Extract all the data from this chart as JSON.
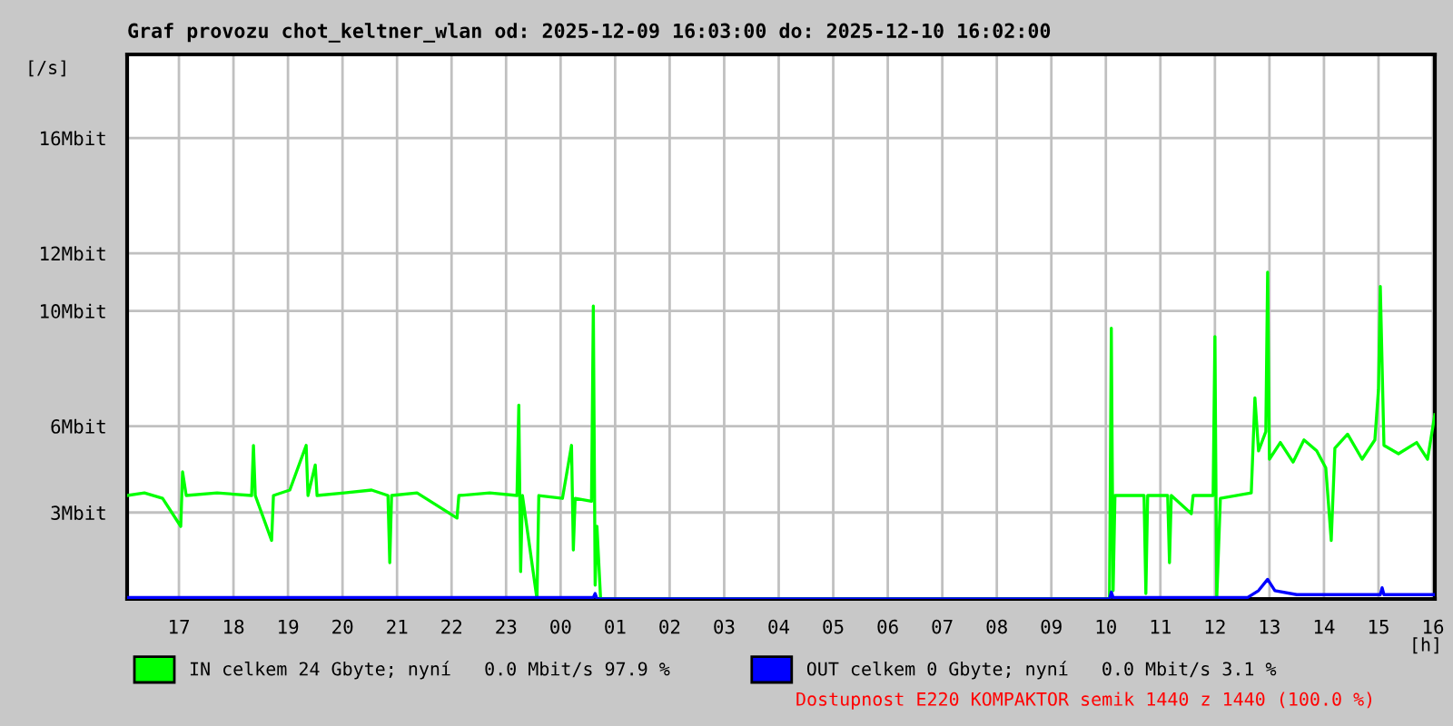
{
  "chart_data": {
    "type": "line",
    "title": "Graf provozu chot_keltner_wlan od: 2025-12-09 16:03:00 do: 2025-12-10 16:02:00",
    "xlabel": "[h]",
    "ylabel": "[/s]",
    "xlim": [
      "2025-12-09T16:03",
      "2025-12-10T16:02"
    ],
    "xticks": [
      {
        "value": "2025-12-09T17:00",
        "label": "17"
      },
      {
        "value": "2025-12-09T18:00",
        "label": "18"
      },
      {
        "value": "2025-12-09T19:00",
        "label": "19"
      },
      {
        "value": "2025-12-09T20:00",
        "label": "20"
      },
      {
        "value": "2025-12-09T21:00",
        "label": "21"
      },
      {
        "value": "2025-12-09T22:00",
        "label": "22"
      },
      {
        "value": "2025-12-09T23:00",
        "label": "23"
      },
      {
        "value": "2025-12-10T00:00",
        "label": "00"
      },
      {
        "value": "2025-12-10T01:00",
        "label": "01"
      },
      {
        "value": "2025-12-10T02:00",
        "label": "02"
      },
      {
        "value": "2025-12-10T03:00",
        "label": "03"
      },
      {
        "value": "2025-12-10T04:00",
        "label": "04"
      },
      {
        "value": "2025-12-10T05:00",
        "label": "05"
      },
      {
        "value": "2025-12-10T06:00",
        "label": "06"
      },
      {
        "value": "2025-12-10T07:00",
        "label": "07"
      },
      {
        "value": "2025-12-10T08:00",
        "label": "08"
      },
      {
        "value": "2025-12-10T09:00",
        "label": "09"
      },
      {
        "value": "2025-12-10T10:00",
        "label": "10"
      },
      {
        "value": "2025-12-10T11:00",
        "label": "11"
      },
      {
        "value": "2025-12-10T12:00",
        "label": "12"
      },
      {
        "value": "2025-12-10T13:00",
        "label": "13"
      },
      {
        "value": "2025-12-10T14:00",
        "label": "14"
      },
      {
        "value": "2025-12-10T15:00",
        "label": "15"
      },
      {
        "value": "2025-12-10T16:00",
        "label": "16"
      }
    ],
    "ylim": [
      0,
      18.9
    ],
    "yticks": [
      {
        "value": 3,
        "label": "3Mbit"
      },
      {
        "value": 6,
        "label": "6Mbit"
      },
      {
        "value": 10,
        "label": "10Mbit"
      },
      {
        "value": 12,
        "label": "12Mbit"
      },
      {
        "value": 16,
        "label": "16Mbit"
      }
    ],
    "grid": true,
    "legend": "bottom",
    "series": [
      {
        "name": "IN celkem 24 Gbyte; nyní   0.0 Mbit/s 97.9 %",
        "color": "#00ff00",
        "x": [
          "2025-12-09T16:03",
          "2025-12-09T16:22",
          "2025-12-09T16:42",
          "2025-12-09T17:02",
          "2025-12-09T17:04",
          "2025-12-09T17:08",
          "2025-12-09T17:42",
          "2025-12-09T18:20",
          "2025-12-09T18:22",
          "2025-12-09T18:24",
          "2025-12-09T18:42",
          "2025-12-09T18:44",
          "2025-12-09T19:02",
          "2025-12-09T19:20",
          "2025-12-09T19:22",
          "2025-12-09T19:30",
          "2025-12-09T19:32",
          "2025-12-09T20:02",
          "2025-12-09T20:32",
          "2025-12-09T20:50",
          "2025-12-09T20:52",
          "2025-12-09T20:54",
          "2025-12-09T21:22",
          "2025-12-09T22:06",
          "2025-12-09T22:08",
          "2025-12-09T22:42",
          "2025-12-09T23:12",
          "2025-12-09T23:14",
          "2025-12-09T23:16",
          "2025-12-09T23:18",
          "2025-12-09T23:34",
          "2025-12-09T23:36",
          "2025-12-10T00:02",
          "2025-12-10T00:12",
          "2025-12-10T00:14",
          "2025-12-10T00:16",
          "2025-12-10T00:34",
          "2025-12-10T00:36",
          "2025-12-10T00:38",
          "2025-12-10T00:40",
          "2025-12-10T00:44",
          "2025-12-10T10:04",
          "2025-12-10T10:06",
          "2025-12-10T10:08",
          "2025-12-10T10:10",
          "2025-12-10T10:42",
          "2025-12-10T10:44",
          "2025-12-10T10:46",
          "2025-12-10T11:08",
          "2025-12-10T11:10",
          "2025-12-10T11:12",
          "2025-12-10T11:34",
          "2025-12-10T11:36",
          "2025-12-10T11:58",
          "2025-12-10T12:00",
          "2025-12-10T12:02",
          "2025-12-10T12:06",
          "2025-12-10T12:40",
          "2025-12-10T12:42",
          "2025-12-10T12:44",
          "2025-12-10T12:48",
          "2025-12-10T12:56",
          "2025-12-10T12:58",
          "2025-12-10T13:00",
          "2025-12-10T13:12",
          "2025-12-10T13:26",
          "2025-12-10T13:38",
          "2025-12-10T13:52",
          "2025-12-10T14:02",
          "2025-12-10T14:08",
          "2025-12-10T14:12",
          "2025-12-10T14:26",
          "2025-12-10T14:42",
          "2025-12-10T14:56",
          "2025-12-10T15:00",
          "2025-12-10T15:02",
          "2025-12-10T15:06",
          "2025-12-10T15:22",
          "2025-12-10T15:42",
          "2025-12-10T15:54",
          "2025-12-10T16:02"
        ],
        "values": [
          3.59,
          3.68,
          3.49,
          2.52,
          4.41,
          3.59,
          3.68,
          3.59,
          5.33,
          3.59,
          2.03,
          3.59,
          3.78,
          5.33,
          3.59,
          4.65,
          3.59,
          3.68,
          3.78,
          3.59,
          1.26,
          3.59,
          3.68,
          2.81,
          3.59,
          3.68,
          3.59,
          6.73,
          0.95,
          3.59,
          0,
          3.59,
          3.49,
          5.33,
          1.7,
          3.49,
          3.39,
          10.17,
          0.48,
          2.52,
          0,
          0,
          9.4,
          0.29,
          3.59,
          3.59,
          0.19,
          3.59,
          3.59,
          1.26,
          3.59,
          2.96,
          3.59,
          3.59,
          9.11,
          0,
          3.49,
          3.68,
          5.33,
          6.98,
          5.14,
          5.81,
          11.34,
          4.85,
          5.43,
          4.75,
          5.52,
          5.14,
          4.55,
          2.03,
          5.23,
          5.72,
          4.85,
          5.52,
          7.27,
          10.85,
          5.33,
          5.04,
          5.43,
          4.85,
          6.4
        ]
      },
      {
        "name": "OUT celkem 0 Gbyte; nyní   0.0 Mbit/s 3.1 %",
        "color": "#0000ff",
        "x": [
          "2025-12-09T16:03",
          "2025-12-10T00:36",
          "2025-12-10T00:38",
          "2025-12-10T00:40",
          "2025-12-10T10:04",
          "2025-12-10T10:06",
          "2025-12-10T10:08",
          "2025-12-10T12:36",
          "2025-12-10T12:48",
          "2025-12-10T12:58",
          "2025-12-10T13:06",
          "2025-12-10T13:30",
          "2025-12-10T15:02",
          "2025-12-10T15:04",
          "2025-12-10T15:06",
          "2025-12-10T16:02"
        ],
        "values": [
          0.05,
          0.05,
          0.19,
          0,
          0,
          0.24,
          0.05,
          0.05,
          0.29,
          0.68,
          0.29,
          0.15,
          0.15,
          0.39,
          0.15,
          0.15
        ]
      }
    ],
    "annotations": [
      "Dostupnost E220 KOMPAKTOR semik 1440 z 1440 (100.0 %)"
    ]
  }
}
